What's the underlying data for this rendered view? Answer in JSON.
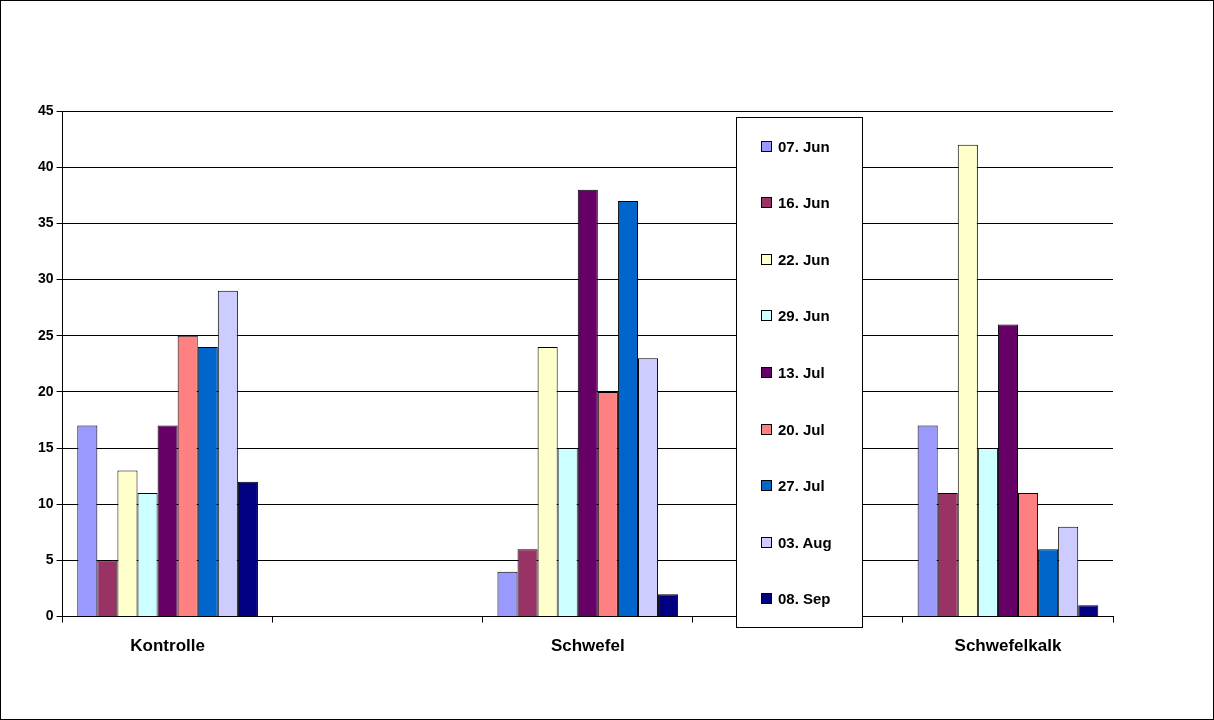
{
  "chart_data": {
    "type": "bar",
    "categories": [
      "Kontrolle",
      null,
      "Schwefel",
      null,
      "Schwefelkalk"
    ],
    "series": [
      {
        "name": "07. Jun",
        "color": "#9999ff",
        "values": [
          17,
          null,
          4,
          null,
          17
        ]
      },
      {
        "name": "16. Jun",
        "color": "#993366",
        "values": [
          5,
          null,
          6,
          null,
          11
        ]
      },
      {
        "name": "22. Jun",
        "color": "#ffffcc",
        "values": [
          13,
          null,
          24,
          null,
          42
        ]
      },
      {
        "name": "29. Jun",
        "color": "#ccffff",
        "values": [
          11,
          null,
          15,
          null,
          15
        ]
      },
      {
        "name": "13. Jul",
        "color": "#660066",
        "values": [
          17,
          null,
          38,
          null,
          26
        ]
      },
      {
        "name": "20. Jul",
        "color": "#ff8080",
        "values": [
          25,
          null,
          20,
          null,
          11
        ]
      },
      {
        "name": "27. Jul",
        "color": "#0066cc",
        "values": [
          24,
          null,
          37,
          null,
          6
        ]
      },
      {
        "name": "03. Aug",
        "color": "#ccccff",
        "values": [
          29,
          null,
          23,
          null,
          8
        ]
      },
      {
        "name": "08. Sep",
        "color": "#000080",
        "values": [
          12,
          null,
          2,
          null,
          1
        ]
      }
    ],
    "ylim": [
      0,
      45
    ],
    "yticks": [
      0,
      5,
      10,
      15,
      20,
      25,
      30,
      35,
      40,
      45
    ],
    "grid": "y",
    "legend": "right"
  }
}
